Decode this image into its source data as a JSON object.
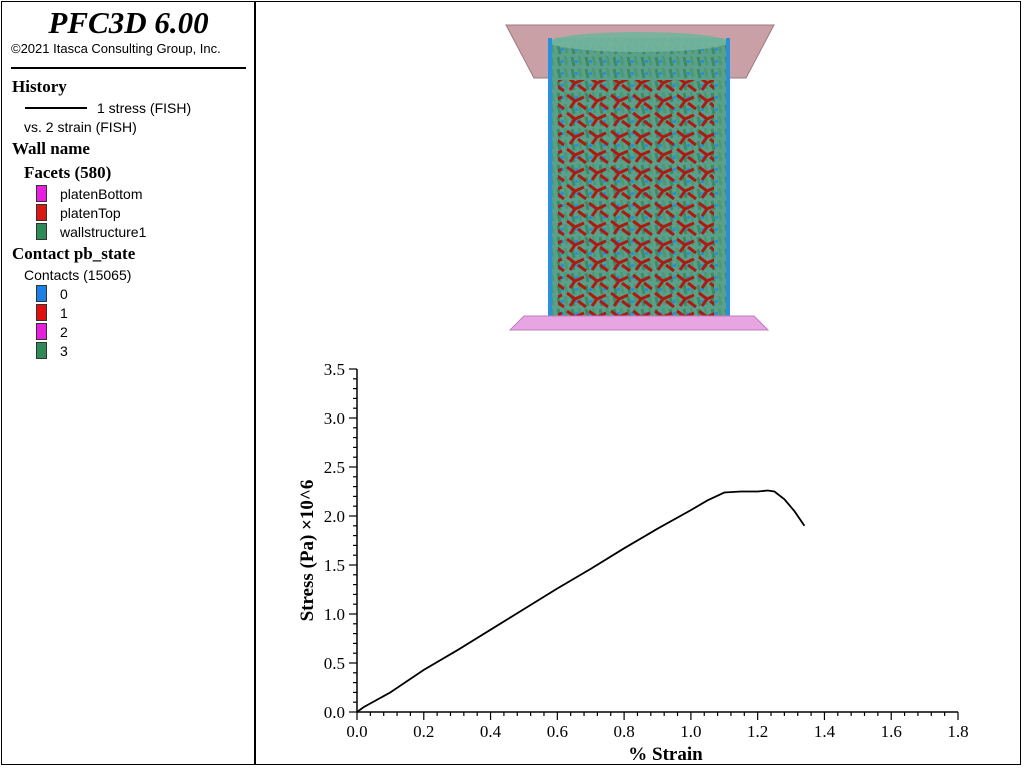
{
  "header": {
    "title": "PFC3D 6.00",
    "copyright": "©2021 Itasca Consulting Group, Inc."
  },
  "legend": {
    "history_heading": "History",
    "history_line": "1 stress (FISH)",
    "history_vs": "vs. 2 strain (FISH)",
    "wall_heading": "Wall name",
    "facets_heading": "Facets (580)",
    "facets": [
      {
        "label": "platenBottom",
        "color": "#e81ee0"
      },
      {
        "label": "platenTop",
        "color": "#d81a12"
      },
      {
        "label": "wallstructure1",
        "color": "#2e8b57"
      }
    ],
    "contact_heading": "Contact pb_state",
    "contacts_count": "Contacts (15065)",
    "contact_states": [
      {
        "label": "0",
        "color": "#1a7fe6"
      },
      {
        "label": "1",
        "color": "#e01010"
      },
      {
        "label": "2",
        "color": "#e81ee0"
      },
      {
        "label": "3",
        "color": "#2e8b57"
      }
    ]
  },
  "chart_data": {
    "type": "line",
    "title": "",
    "xlabel": "% Strain",
    "ylabel": "Stress (Pa) ×10^6",
    "xlim": [
      0,
      1.8
    ],
    "ylim": [
      0,
      3.5
    ],
    "xticks": [
      "0.0",
      "0.2",
      "0.4",
      "0.6",
      "0.8",
      "1.0",
      "1.2",
      "1.4",
      "1.6",
      "1.8"
    ],
    "yticks": [
      "0.0",
      "0.5",
      "1.0",
      "1.5",
      "2.0",
      "2.5",
      "3.0",
      "3.5"
    ],
    "grid": false,
    "series": [
      {
        "x": [
          0.0,
          0.02,
          0.1,
          0.2,
          0.3,
          0.4,
          0.5,
          0.6,
          0.7,
          0.8,
          0.9,
          1.0,
          1.05,
          1.1,
          1.15,
          1.2,
          1.23,
          1.25,
          1.28,
          1.31,
          1.34
        ],
        "y": [
          0.0,
          0.05,
          0.2,
          0.43,
          0.63,
          0.84,
          1.05,
          1.26,
          1.46,
          1.67,
          1.87,
          2.06,
          2.16,
          2.24,
          2.25,
          2.25,
          2.26,
          2.25,
          2.17,
          2.05,
          1.9
        ]
      }
    ]
  }
}
